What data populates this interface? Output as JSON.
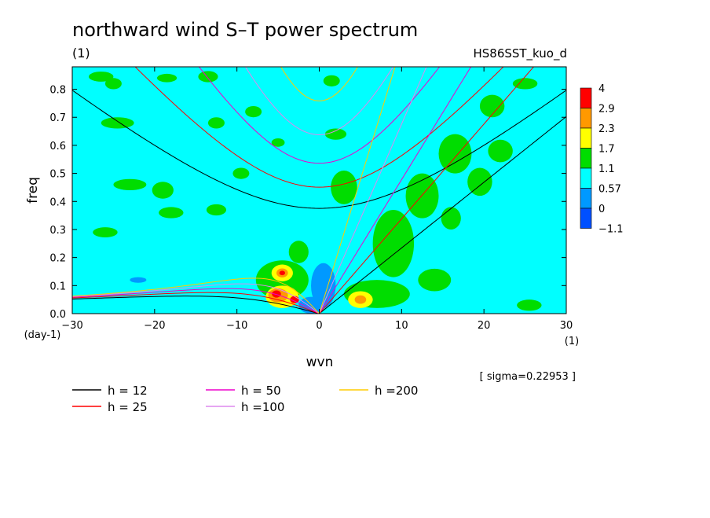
{
  "title": "northward wind S–T power spectrum",
  "units_label": "(1)",
  "run_id": "HS86SST_kuo_d",
  "sigma_note": "[ sigma=0.22953 ]",
  "chart_data": {
    "type": "heatmap",
    "title": "northward wind S–T power spectrum",
    "xlabel": "wvn",
    "ylabel": "freq",
    "x_unit": "(1)",
    "y_unit": "(day-1)",
    "xlim": [
      -30,
      30
    ],
    "ylim": [
      0,
      0.88
    ],
    "xticks": [
      "−30",
      "−20",
      "−10",
      "0",
      "10",
      "20",
      "30"
    ],
    "yticks": [
      "0.0",
      "0.1",
      "0.2",
      "0.3",
      "0.4",
      "0.5",
      "0.6",
      "0.7",
      "0.8"
    ],
    "xtick_values": [
      -30,
      -20,
      -10,
      0,
      10,
      20,
      30
    ],
    "ytick_values": [
      0,
      0.1,
      0.2,
      0.3,
      0.4,
      0.5,
      0.6,
      0.7,
      0.8
    ],
    "colorbar": {
      "levels": [
        "4",
        "2.9",
        "2.3",
        "1.7",
        "1.1",
        "0.57",
        "0",
        "−1.1"
      ],
      "colors": [
        "#ff0000",
        "#ff9900",
        "#ffff00",
        "#00dd00",
        "#00ffff",
        "#0099ff",
        "#0050ff",
        "#0050ff"
      ]
    },
    "background_color": "#00ffff",
    "blobs": [
      {
        "x": -26.5,
        "y": 0.845,
        "rx": 1.5,
        "ry": 0.018,
        "level": "green"
      },
      {
        "x": -13.5,
        "y": 0.845,
        "rx": 1.2,
        "ry": 0.02,
        "level": "green"
      },
      {
        "x": -12.5,
        "y": 0.68,
        "rx": 1.0,
        "ry": 0.02,
        "level": "green"
      },
      {
        "x": -24.5,
        "y": 0.68,
        "rx": 2.0,
        "ry": 0.02,
        "level": "green"
      },
      {
        "x": -18.5,
        "y": 0.84,
        "rx": 1.2,
        "ry": 0.015,
        "level": "green"
      },
      {
        "x": -5.0,
        "y": 0.61,
        "rx": 0.8,
        "ry": 0.015,
        "level": "green"
      },
      {
        "x": 2.0,
        "y": 0.64,
        "rx": 1.3,
        "ry": 0.02,
        "level": "green"
      },
      {
        "x": 1.5,
        "y": 0.83,
        "rx": 1.0,
        "ry": 0.02,
        "level": "green"
      },
      {
        "x": -9.5,
        "y": 0.5,
        "rx": 1.0,
        "ry": 0.02,
        "level": "green"
      },
      {
        "x": -19.0,
        "y": 0.44,
        "rx": 1.3,
        "ry": 0.03,
        "level": "green"
      },
      {
        "x": -12.5,
        "y": 0.37,
        "rx": 1.2,
        "ry": 0.02,
        "level": "green"
      },
      {
        "x": -26.0,
        "y": 0.29,
        "rx": 1.5,
        "ry": 0.018,
        "level": "green"
      },
      {
        "x": -18.0,
        "y": 0.36,
        "rx": 1.5,
        "ry": 0.02,
        "level": "green"
      },
      {
        "x": -23.0,
        "y": 0.46,
        "rx": 2.0,
        "ry": 0.02,
        "level": "green"
      },
      {
        "x": -8.0,
        "y": 0.72,
        "rx": 1.0,
        "ry": 0.02,
        "level": "green"
      },
      {
        "x": 9.0,
        "y": 0.25,
        "rx": 2.5,
        "ry": 0.12,
        "level": "green"
      },
      {
        "x": 12.5,
        "y": 0.42,
        "rx": 2.0,
        "ry": 0.08,
        "level": "green"
      },
      {
        "x": 16.5,
        "y": 0.57,
        "rx": 2.0,
        "ry": 0.07,
        "level": "green"
      },
      {
        "x": 19.5,
        "y": 0.47,
        "rx": 1.5,
        "ry": 0.05,
        "level": "green"
      },
      {
        "x": 22.0,
        "y": 0.58,
        "rx": 1.5,
        "ry": 0.04,
        "level": "green"
      },
      {
        "x": 21.0,
        "y": 0.74,
        "rx": 1.5,
        "ry": 0.04,
        "level": "green"
      },
      {
        "x": 3.0,
        "y": 0.45,
        "rx": 1.6,
        "ry": 0.06,
        "level": "green"
      },
      {
        "x": 25.0,
        "y": 0.82,
        "rx": 1.5,
        "ry": 0.02,
        "level": "green"
      },
      {
        "x": 16.0,
        "y": 0.34,
        "rx": 1.2,
        "ry": 0.04,
        "level": "green"
      },
      {
        "x": 7.0,
        "y": 0.07,
        "rx": 4.0,
        "ry": 0.05,
        "level": "green"
      },
      {
        "x": 14.0,
        "y": 0.12,
        "rx": 2.0,
        "ry": 0.04,
        "level": "green"
      },
      {
        "x": 25.5,
        "y": 0.03,
        "rx": 1.5,
        "ry": 0.02,
        "level": "green"
      },
      {
        "x": -4.5,
        "y": 0.12,
        "rx": 3.2,
        "ry": 0.07,
        "level": "green"
      },
      {
        "x": -2.5,
        "y": 0.22,
        "rx": 1.2,
        "ry": 0.04,
        "level": "green"
      },
      {
        "x": -4.5,
        "y": 0.145,
        "rx": 1.3,
        "ry": 0.03,
        "level": "yellow"
      },
      {
        "x": -4.5,
        "y": 0.145,
        "rx": 0.7,
        "ry": 0.016,
        "level": "orange"
      },
      {
        "x": -4.5,
        "y": 0.145,
        "rx": 0.35,
        "ry": 0.008,
        "level": "red"
      },
      {
        "x": -4.5,
        "y": 0.06,
        "rx": 2.0,
        "ry": 0.04,
        "level": "yellow"
      },
      {
        "x": -5.0,
        "y": 0.065,
        "rx": 1.2,
        "ry": 0.025,
        "level": "orange"
      },
      {
        "x": -5.2,
        "y": 0.07,
        "rx": 0.55,
        "ry": 0.013,
        "level": "red"
      },
      {
        "x": -3.0,
        "y": 0.05,
        "rx": 0.55,
        "ry": 0.013,
        "level": "red"
      },
      {
        "x": 5.0,
        "y": 0.05,
        "rx": 1.5,
        "ry": 0.03,
        "level": "yellow"
      },
      {
        "x": 5.0,
        "y": 0.05,
        "rx": 0.7,
        "ry": 0.015,
        "level": "orange"
      },
      {
        "x": -25.0,
        "y": 0.82,
        "rx": 1.0,
        "ry": 0.02,
        "level": "green"
      }
    ],
    "low_blobs": [
      {
        "x": 0.5,
        "y": 0.1,
        "rx": 1.5,
        "ry": 0.08
      },
      {
        "x": -1.0,
        "y": 0.03,
        "rx": 1.5,
        "ry": 0.03
      },
      {
        "x": -22.0,
        "y": 0.12,
        "rx": 1.0,
        "ry": 0.01
      }
    ],
    "series": [
      {
        "name": "h = 12",
        "color": "#000000"
      },
      {
        "name": "h = 25",
        "color": "#ff0000"
      },
      {
        "name": "h = 50",
        "color": "#ee00cc"
      },
      {
        "name": "h =100",
        "color": "#dd88ee"
      },
      {
        "name": "h =200",
        "color": "#ffcc00"
      }
    ],
    "dispersion_curves": [
      {
        "h": 12,
        "color": "#000000",
        "sqrt_gh": 10.85
      },
      {
        "h": 25,
        "color": "#ff0000",
        "sqrt_gh": 15.66
      },
      {
        "h": 50,
        "color": "#ee00cc",
        "sqrt_gh": 22.14
      },
      {
        "h": 100,
        "color": "#dd88ee",
        "sqrt_gh": 31.32
      },
      {
        "h": 200,
        "color": "#ffcc00",
        "sqrt_gh": 44.29
      }
    ],
    "legend": [
      {
        "label": "h = 12",
        "color": "#000000"
      },
      {
        "label": "h = 25",
        "color": "#ff0000"
      },
      {
        "label": "h = 50",
        "color": "#ee00cc"
      },
      {
        "label": "h =100",
        "color": "#dd88ee"
      },
      {
        "label": "h =200",
        "color": "#ffcc00"
      }
    ]
  }
}
